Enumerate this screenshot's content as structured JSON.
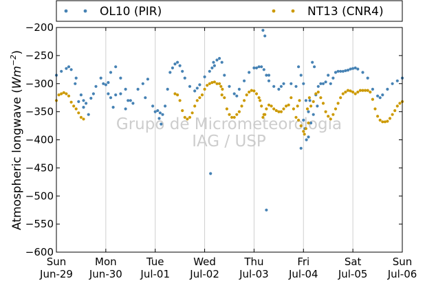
{
  "chart_data": {
    "type": "scatter",
    "title": "",
    "ylabel": "Atmospheric longwave (Wm^-2)",
    "ylabel_main": "Atmospheric longwave (",
    "ylabel_unit_w": "Wm",
    "ylabel_unit_exp": "−2",
    "ylabel_close": ")",
    "xlabel": "",
    "ylim": [
      -600,
      -200
    ],
    "xlim_days": [
      0,
      7
    ],
    "yticks": [
      {
        "value": -200,
        "label": "−200"
      },
      {
        "value": -250,
        "label": "−250"
      },
      {
        "value": -300,
        "label": "−300"
      },
      {
        "value": -350,
        "label": "−350"
      },
      {
        "value": -400,
        "label": "−400"
      },
      {
        "value": -450,
        "label": "−450"
      },
      {
        "value": -500,
        "label": "−500"
      },
      {
        "value": -550,
        "label": "−550"
      },
      {
        "value": -600,
        "label": "−600"
      }
    ],
    "xticks": [
      {
        "day": "Sun",
        "date": "Jun-29"
      },
      {
        "day": "Mon",
        "date": "Jun-30"
      },
      {
        "day": "Tue",
        "date": "Jul-01"
      },
      {
        "day": "Wed",
        "date": "Jul-02"
      },
      {
        "day": "Thu",
        "date": "Jul-03"
      },
      {
        "day": "Fri",
        "date": "Jul-04"
      },
      {
        "day": "Sat",
        "date": "Jul-05"
      },
      {
        "day": "Sun",
        "date": "Jul-06"
      }
    ],
    "grid": "vertical",
    "legend": "top",
    "series": [
      {
        "name": "OL10 (PIR)",
        "color": "#4682b4",
        "points": [
          [
            0.0,
            -285
          ],
          [
            0.1,
            -278
          ],
          [
            0.2,
            -273
          ],
          [
            0.25,
            -270
          ],
          [
            0.3,
            -275
          ],
          [
            0.4,
            -290
          ],
          [
            0.5,
            -320
          ],
          [
            0.55,
            -330
          ],
          [
            0.6,
            -335
          ],
          [
            0.7,
            -326
          ],
          [
            0.75,
            -318
          ],
          [
            0.8,
            -305
          ],
          [
            0.9,
            -290
          ],
          [
            0.95,
            -300
          ],
          [
            1.0,
            -302
          ],
          [
            1.05,
            -298
          ],
          [
            1.1,
            -280
          ],
          [
            1.2,
            -270
          ],
          [
            1.3,
            -290
          ],
          [
            1.4,
            -310
          ],
          [
            1.5,
            -330
          ],
          [
            1.55,
            -335
          ],
          [
            1.65,
            -310
          ],
          [
            1.75,
            -300
          ],
          [
            1.85,
            -292
          ],
          [
            1.95,
            -340
          ],
          [
            2.0,
            -350
          ],
          [
            2.05,
            -348
          ],
          [
            2.1,
            -352
          ],
          [
            2.15,
            -355
          ],
          [
            2.2,
            -340
          ],
          [
            2.25,
            -310
          ],
          [
            2.3,
            -280
          ],
          [
            2.35,
            -272
          ],
          [
            2.4,
            -265
          ],
          [
            2.45,
            -262
          ],
          [
            2.5,
            -268
          ],
          [
            2.55,
            -278
          ],
          [
            2.6,
            -290
          ],
          [
            2.7,
            -305
          ],
          [
            2.8,
            -313
          ],
          [
            2.85,
            -308
          ],
          [
            2.9,
            -302
          ],
          [
            3.0,
            -288
          ],
          [
            3.1,
            -278
          ],
          [
            3.15,
            -272
          ],
          [
            3.2,
            -268
          ],
          [
            3.25,
            -258
          ],
          [
            3.3,
            -255
          ],
          [
            3.35,
            -262
          ],
          [
            3.4,
            -285
          ],
          [
            3.5,
            -305
          ],
          [
            3.6,
            -318
          ],
          [
            3.65,
            -322
          ],
          [
            3.7,
            -310
          ],
          [
            3.8,
            -295
          ],
          [
            3.9,
            -280
          ],
          [
            4.0,
            -272
          ],
          [
            4.05,
            -272
          ],
          [
            4.1,
            -270
          ],
          [
            4.15,
            -270
          ],
          [
            4.2,
            -275
          ],
          [
            4.25,
            -285
          ],
          [
            4.3,
            -295
          ],
          [
            4.4,
            -305
          ],
          [
            4.5,
            -310
          ],
          [
            4.55,
            -305
          ],
          [
            4.6,
            -300
          ],
          [
            4.75,
            -300
          ],
          [
            4.85,
            -305
          ],
          [
            4.9,
            -270
          ],
          [
            4.95,
            -285
          ],
          [
            5.0,
            -300
          ],
          [
            5.05,
            -330
          ],
          [
            5.1,
            -350
          ],
          [
            5.15,
            -370
          ],
          [
            5.2,
            -355
          ],
          [
            5.25,
            -320
          ],
          [
            5.3,
            -305
          ],
          [
            5.4,
            -300
          ],
          [
            5.45,
            -297
          ],
          [
            5.55,
            -300
          ],
          [
            5.6,
            -290
          ],
          [
            5.65,
            -280
          ],
          [
            5.7,
            -278
          ],
          [
            5.75,
            -278
          ],
          [
            5.8,
            -278
          ],
          [
            5.85,
            -277
          ],
          [
            5.9,
            -276
          ],
          [
            5.95,
            -274
          ],
          [
            6.0,
            -273
          ],
          [
            6.05,
            -272
          ],
          [
            6.1,
            -274
          ],
          [
            6.2,
            -280
          ],
          [
            6.3,
            -290
          ],
          [
            6.4,
            -310
          ],
          [
            6.5,
            -322
          ],
          [
            6.55,
            -325
          ],
          [
            6.6,
            -320
          ],
          [
            6.7,
            -310
          ],
          [
            6.8,
            -300
          ],
          [
            6.9,
            -295
          ],
          [
            7.0,
            -290
          ],
          [
            0.38,
            -300
          ],
          [
            0.45,
            -332
          ],
          [
            0.55,
            -342
          ],
          [
            0.65,
            -355
          ],
          [
            1.05,
            -318
          ],
          [
            1.1,
            -325
          ],
          [
            1.15,
            -342
          ],
          [
            1.2,
            -320
          ],
          [
            1.3,
            -318
          ],
          [
            1.4,
            -345
          ],
          [
            1.45,
            -330
          ],
          [
            1.8,
            -325
          ],
          [
            2.08,
            -362
          ],
          [
            2.12,
            -372
          ],
          [
            3.12,
            -460
          ],
          [
            3.18,
            -262
          ],
          [
            4.18,
            -205
          ],
          [
            4.22,
            -215
          ],
          [
            4.25,
            -525
          ],
          [
            4.3,
            -285
          ],
          [
            4.95,
            -415
          ],
          [
            5.0,
            -365
          ],
          [
            5.03,
            -380
          ],
          [
            5.06,
            -400
          ],
          [
            5.1,
            -395
          ],
          [
            5.13,
            -330
          ],
          [
            5.18,
            -262
          ],
          [
            5.22,
            -270
          ],
          [
            5.28,
            -340
          ],
          [
            5.35,
            -300
          ],
          [
            5.5,
            -285
          ]
        ]
      },
      {
        "name": "NT13 (CNR4)",
        "color": "#cc9900",
        "points": [
          [
            0.0,
            -330
          ],
          [
            0.05,
            -320
          ],
          [
            0.1,
            -318
          ],
          [
            0.15,
            -316
          ],
          [
            0.2,
            -318
          ],
          [
            0.25,
            -322
          ],
          [
            0.3,
            -333
          ],
          [
            0.35,
            -340
          ],
          [
            0.4,
            -345
          ],
          [
            0.45,
            -352
          ],
          [
            0.5,
            -360
          ],
          [
            0.55,
            -363
          ],
          [
            2.4,
            -318
          ],
          [
            2.45,
            -320
          ],
          [
            2.5,
            -330
          ],
          [
            2.55,
            -348
          ],
          [
            2.6,
            -360
          ],
          [
            2.65,
            -363
          ],
          [
            2.7,
            -360
          ],
          [
            2.75,
            -352
          ],
          [
            2.8,
            -340
          ],
          [
            2.85,
            -330
          ],
          [
            2.9,
            -325
          ],
          [
            2.95,
            -320
          ],
          [
            3.0,
            -310
          ],
          [
            3.05,
            -303
          ],
          [
            3.1,
            -300
          ],
          [
            3.15,
            -298
          ],
          [
            3.2,
            -297
          ],
          [
            3.25,
            -300
          ],
          [
            3.3,
            -300
          ],
          [
            3.35,
            -320
          ],
          [
            3.4,
            -325
          ],
          [
            3.45,
            -345
          ],
          [
            3.5,
            -355
          ],
          [
            3.55,
            -360
          ],
          [
            3.6,
            -360
          ],
          [
            3.65,
            -355
          ],
          [
            3.7,
            -350
          ],
          [
            3.75,
            -340
          ],
          [
            3.8,
            -330
          ],
          [
            3.85,
            -320
          ],
          [
            3.9,
            -315
          ],
          [
            3.95,
            -312
          ],
          [
            4.0,
            -313
          ],
          [
            4.05,
            -318
          ],
          [
            4.1,
            -325
          ],
          [
            4.15,
            -340
          ],
          [
            4.2,
            -355
          ],
          [
            4.25,
            -345
          ],
          [
            4.3,
            -338
          ],
          [
            4.35,
            -340
          ],
          [
            4.4,
            -345
          ],
          [
            4.45,
            -348
          ],
          [
            4.5,
            -350
          ],
          [
            4.55,
            -350
          ],
          [
            4.6,
            -345
          ],
          [
            4.65,
            -340
          ],
          [
            4.7,
            -338
          ],
          [
            4.75,
            -325
          ],
          [
            4.8,
            -345
          ],
          [
            4.85,
            -360
          ],
          [
            4.9,
            -365
          ],
          [
            4.95,
            -375
          ],
          [
            5.0,
            -385
          ],
          [
            5.05,
            -380
          ],
          [
            5.1,
            -370
          ],
          [
            5.15,
            -340
          ],
          [
            5.2,
            -332
          ],
          [
            5.25,
            -318
          ],
          [
            5.3,
            -315
          ],
          [
            5.35,
            -325
          ],
          [
            5.4,
            -335
          ],
          [
            5.45,
            -350
          ],
          [
            5.5,
            -358
          ],
          [
            5.55,
            -363
          ],
          [
            5.6,
            -355
          ],
          [
            5.65,
            -345
          ],
          [
            5.7,
            -335
          ],
          [
            5.75,
            -325
          ],
          [
            5.8,
            -318
          ],
          [
            5.85,
            -315
          ],
          [
            5.9,
            -312
          ],
          [
            5.95,
            -313
          ],
          [
            6.0,
            -315
          ],
          [
            6.05,
            -318
          ],
          [
            6.1,
            -315
          ],
          [
            6.15,
            -312
          ],
          [
            6.2,
            -312
          ],
          [
            6.25,
            -312
          ],
          [
            6.3,
            -312
          ],
          [
            6.35,
            -315
          ],
          [
            6.4,
            -328
          ],
          [
            6.45,
            -345
          ],
          [
            6.5,
            -358
          ],
          [
            6.55,
            -365
          ],
          [
            6.6,
            -368
          ],
          [
            6.65,
            -368
          ],
          [
            6.7,
            -367
          ],
          [
            6.75,
            -362
          ],
          [
            6.8,
            -355
          ],
          [
            6.85,
            -348
          ],
          [
            6.9,
            -340
          ],
          [
            6.95,
            -335
          ],
          [
            7.0,
            -332
          ],
          [
            3.33,
            -305
          ],
          [
            3.36,
            -310
          ],
          [
            4.12,
            -330
          ],
          [
            4.18,
            -360
          ],
          [
            4.22,
            -355
          ],
          [
            4.88,
            -340
          ],
          [
            4.92,
            -330
          ],
          [
            5.02,
            -390
          ],
          [
            5.08,
            -345
          ],
          [
            5.12,
            -325
          ]
        ]
      }
    ]
  },
  "watermark": {
    "line1": "Grupo de Micrometeorologia",
    "line2": "IAG / USP"
  }
}
